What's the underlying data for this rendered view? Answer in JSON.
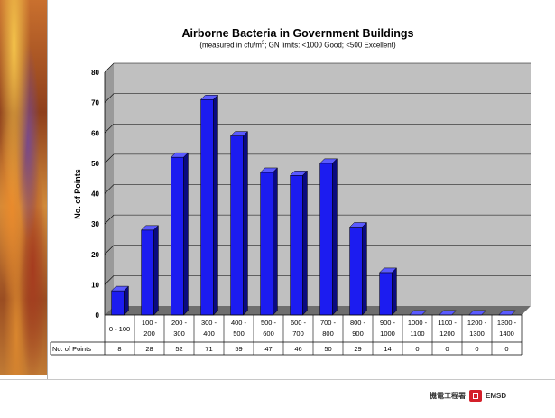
{
  "chart_data": {
    "type": "bar",
    "title": "Airborne Bacteria in Government Buildings",
    "subtitle_prefix": "(measured in cfu/m",
    "subtitle_sup": "3",
    "subtitle_suffix": "; GN limits: <1000 Good; <500 Excellent)",
    "xlabel": "",
    "ylabel": "No. of Points",
    "ylim": [
      0,
      80
    ],
    "yticks": [
      0,
      10,
      20,
      30,
      40,
      50,
      60,
      70,
      80
    ],
    "categories": [
      [
        "0 - 100"
      ],
      [
        "100 -",
        "200"
      ],
      [
        "200 -",
        "300"
      ],
      [
        "300 -",
        "400"
      ],
      [
        "400 -",
        "500"
      ],
      [
        "500 -",
        "600"
      ],
      [
        "600 -",
        "700"
      ],
      [
        "700 -",
        "800"
      ],
      [
        "800 -",
        "900"
      ],
      [
        "900 -",
        "1000"
      ],
      [
        "1000 -",
        "1100"
      ],
      [
        "1100 -",
        "1200"
      ],
      [
        "1200 -",
        "1300"
      ],
      [
        "1300 -",
        "1400"
      ]
    ],
    "values": [
      8,
      28,
      52,
      71,
      59,
      47,
      46,
      50,
      29,
      14,
      0,
      0,
      0,
      0
    ],
    "table_row_label": "No. of Points",
    "grid": true,
    "legend": "none",
    "colors": {
      "bar_front": "#1c1cf0",
      "bar_top": "#5a5aff",
      "bar_side": "#0a0a80",
      "plot_back": "#c0c0c0",
      "plot_side": "#9a9a9a",
      "floor": "#6e6e6e"
    }
  },
  "footer": {
    "logo_text_left": "機電工程署",
    "logo_text_right": "EMSD",
    "logo_icon": "emsd-logo-icon"
  }
}
